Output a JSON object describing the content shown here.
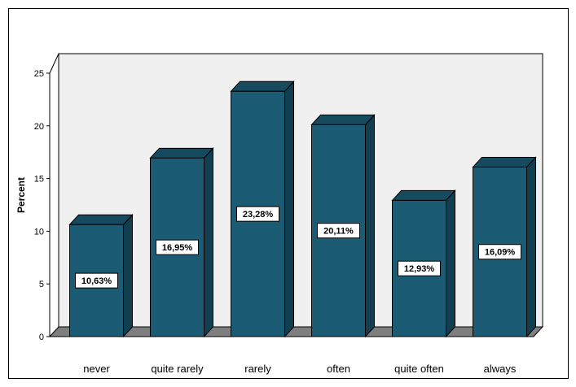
{
  "chart_data": {
    "type": "bar",
    "categories": [
      "never",
      "quite rarely",
      "rarely",
      "often",
      "quite often",
      "always"
    ],
    "values": [
      10.63,
      16.95,
      23.28,
      20.11,
      12.93,
      16.09
    ],
    "data_labels": [
      "10,63%",
      "16,95%",
      "23,28%",
      "20,11%",
      "12,93%",
      "16,09%"
    ],
    "title": "",
    "xlabel": "",
    "ylabel": "Percent",
    "ylim": [
      0,
      25
    ],
    "yticks": [
      0,
      5,
      10,
      15,
      20,
      25
    ],
    "ytick_labels": [
      "0",
      "5",
      "10",
      "15",
      "20",
      "25"
    ],
    "style": "3d",
    "grid": false,
    "colors": {
      "bar_front": "#1b5c74",
      "bar_side": "#123f50",
      "bar_top": "#164b5f",
      "floor": "#7f7f7f",
      "outline": "#000000"
    }
  }
}
